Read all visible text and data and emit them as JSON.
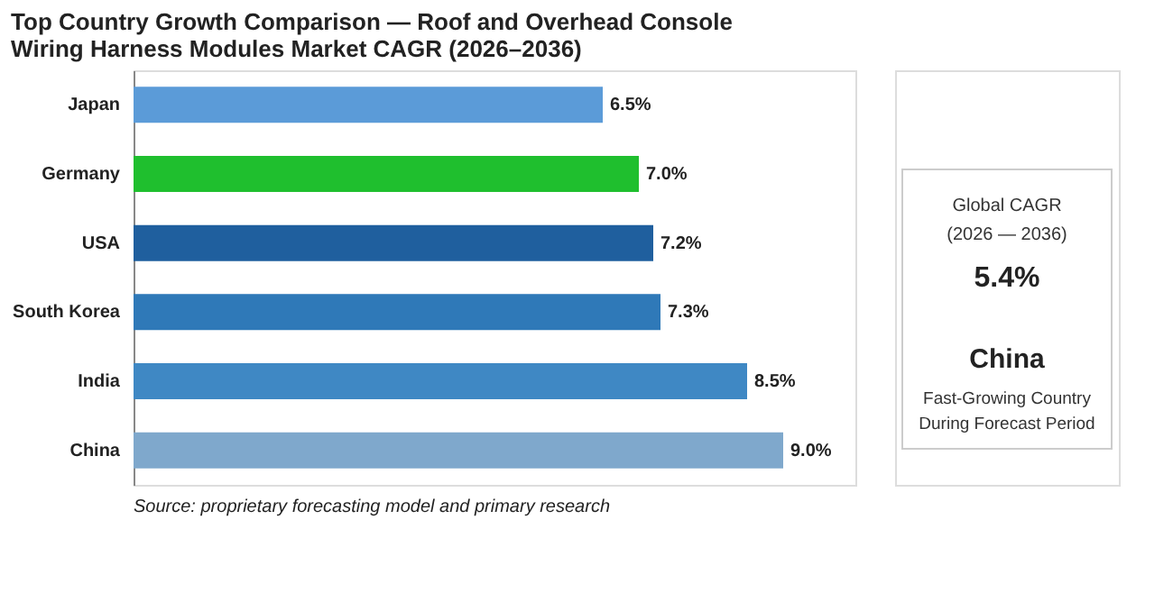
{
  "chart_data": [
    {
      "type": "bar",
      "orientation": "horizontal",
      "title": "Top Country Growth Comparison — Roof and Overhead Console Wiring Harness Modules Market CAGR (2026–2036)",
      "categories": [
        "Japan",
        "Germany",
        "USA",
        "South Korea",
        "India",
        "China"
      ],
      "values": [
        6.5,
        7.0,
        7.2,
        7.3,
        8.5,
        9.0
      ],
      "value_labels": [
        "6.5%",
        "7.0%",
        "7.2%",
        "7.3%",
        "8.5%",
        "9.0%"
      ],
      "colors": [
        "#5b9bd8",
        "#1fbf2e",
        "#1f5f9e",
        "#2f79b8",
        "#3f88c4",
        "#7fa8cc"
      ],
      "xlim": [
        0,
        10
      ],
      "tick_labels": "y",
      "grid": false,
      "annotations": [
        "Source: proprietary forecasting model and primary research"
      ]
    },
    {
      "type": "other",
      "annotations": [
        "Global CAGR",
        "(2026 — 2036)",
        "5.4%",
        "China",
        "Fast-Growing Country",
        "During Forecast Period"
      ]
    }
  ]
}
